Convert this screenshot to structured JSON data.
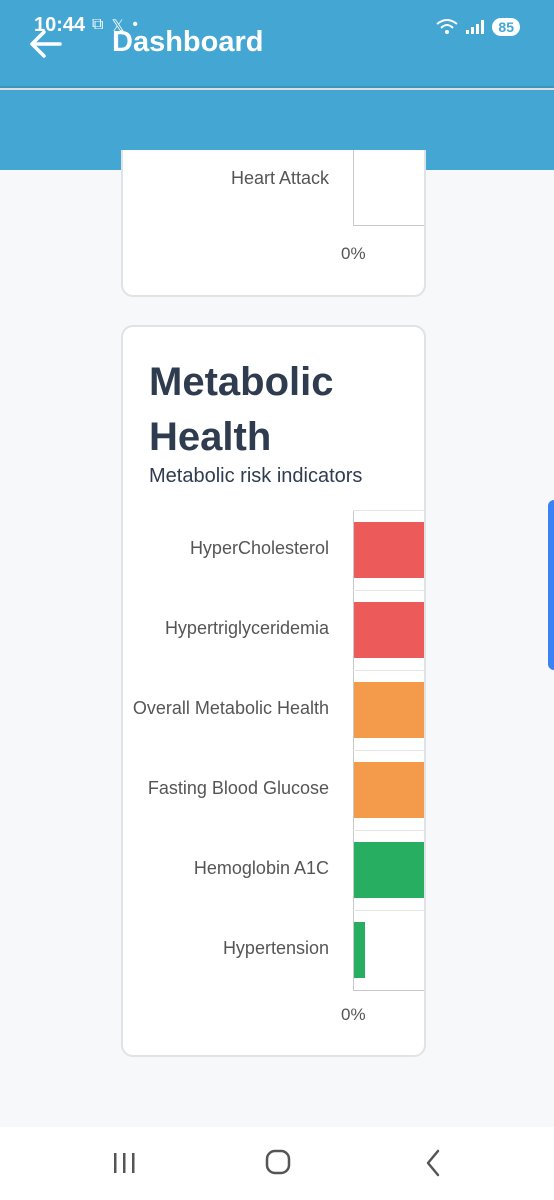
{
  "status_bar": {
    "time": "10:44",
    "battery": "85"
  },
  "header": {
    "title": "Dashboard"
  },
  "previous_card": {
    "row_label": "Heart Attack",
    "axis_label": "0%"
  },
  "metabolic_card": {
    "title": "Metabolic Health",
    "subtitle": "Metabolic risk indicators",
    "axis_label": "0%"
  },
  "chart_data": {
    "type": "bar",
    "orientation": "horizontal",
    "title": "Metabolic Health",
    "subtitle": "Metabolic risk indicators",
    "categories": [
      "HyperCholesterol",
      "Hypertriglyceridemia",
      "Overall Metabolic Health",
      "Fasting Blood Glucose",
      "Hemoglobin A1C",
      "Hypertension"
    ],
    "colors": [
      "#ec5a5a",
      "#ec5a5a",
      "#f39b4a",
      "#f39b4a",
      "#27ae60",
      "#27ae60"
    ],
    "values": [
      100,
      100,
      100,
      100,
      100,
      15
    ],
    "x_tick_labels": [
      "0%"
    ]
  },
  "colors": {
    "primary": "#43a6d3",
    "red": "#ec5a5a",
    "orange": "#f39b4a",
    "green": "#27ae60"
  }
}
